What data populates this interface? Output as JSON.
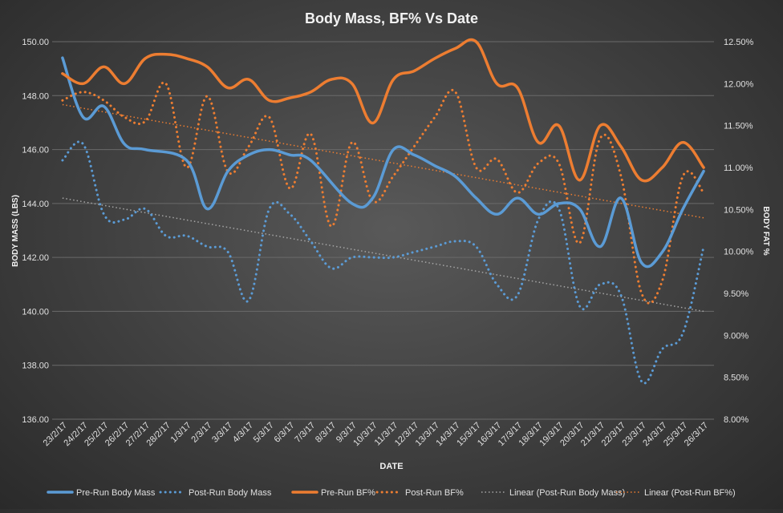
{
  "chart_data": {
    "type": "line",
    "title": "Body Mass,  BF% Vs Date",
    "xlabel": "DATE",
    "ylabel_left": "BODY MASS  (LBS)",
    "ylabel_right": "BODY FAT %",
    "ylim_left": [
      136,
      150
    ],
    "ylim_right": [
      8,
      12.5
    ],
    "yticks_left": [
      "136.00",
      "138.00",
      "140.00",
      "142.00",
      "144.00",
      "146.00",
      "148.00",
      "150.00"
    ],
    "yticks_right": [
      "8.00%",
      "8.50%",
      "9.00%",
      "9.50%",
      "10.00%",
      "10.50%",
      "11.00%",
      "11.50%",
      "12.00%",
      "12.50%"
    ],
    "categories": [
      "23/2/17",
      "24/2/17",
      "25/2/17",
      "26/2/17",
      "27/2/17",
      "28/2/17",
      "1/3/17",
      "2/3/17",
      "3/3/17",
      "4/3/17",
      "5/3/17",
      "6/3/17",
      "7/3/17",
      "8/3/17",
      "9/3/17",
      "10/3/17",
      "11/3/17",
      "12/3/17",
      "13/3/17",
      "14/3/17",
      "15/3/17",
      "16/3/17",
      "17/3/17",
      "18/3/17",
      "19/3/17",
      "20/3/17",
      "21/3/17",
      "22/3/17",
      "23/3/17",
      "24/3/17",
      "25/3/17",
      "26/3/17"
    ],
    "grid": true,
    "legend_position": "bottom",
    "series": [
      {
        "name": "Pre-Run Body Mass",
        "axis": "left",
        "style": "solid",
        "color": "#5b9bd5",
        "points": [
          [
            0,
            149.4
          ],
          [
            1,
            147.2
          ],
          [
            2,
            147.6
          ],
          [
            3,
            146.2
          ],
          [
            4,
            146.0
          ],
          [
            6,
            145.6
          ],
          [
            7,
            143.8
          ],
          [
            8,
            145.2
          ],
          [
            9,
            145.8
          ],
          [
            10,
            146.0
          ],
          [
            11,
            145.8
          ],
          [
            12,
            145.6
          ],
          [
            14,
            144.0
          ],
          [
            15,
            144.2
          ],
          [
            16,
            146.0
          ],
          [
            17,
            145.8
          ],
          [
            18,
            145.4
          ],
          [
            19,
            145.0
          ],
          [
            20,
            144.2
          ],
          [
            21,
            143.6
          ],
          [
            22,
            144.2
          ],
          [
            23,
            143.6
          ],
          [
            24,
            144.0
          ],
          [
            25,
            143.8
          ],
          [
            26,
            142.4
          ],
          [
            27,
            144.2
          ],
          [
            28,
            141.8
          ],
          [
            29,
            142.2
          ],
          [
            30,
            143.8
          ],
          [
            31,
            145.2
          ]
        ]
      },
      {
        "name": "Post-Run Body Mass",
        "axis": "left",
        "style": "dotted",
        "color": "#5b9bd5",
        "points": [
          [
            0,
            145.6
          ],
          [
            1,
            146.2
          ],
          [
            2,
            143.6
          ],
          [
            3,
            143.4
          ],
          [
            4,
            143.8
          ],
          [
            5,
            142.8
          ],
          [
            6,
            142.8
          ],
          [
            7,
            142.4
          ],
          [
            8,
            142.2
          ],
          [
            9,
            140.4
          ],
          [
            10,
            143.8
          ],
          [
            11,
            143.6
          ],
          [
            12,
            142.6
          ],
          [
            13,
            141.6
          ],
          [
            14,
            142.0
          ],
          [
            15,
            142.0
          ],
          [
            16,
            142.0
          ],
          [
            17,
            142.2
          ],
          [
            18,
            142.4
          ],
          [
            19,
            142.6
          ],
          [
            20,
            142.4
          ],
          [
            21,
            141.0
          ],
          [
            22,
            140.6
          ],
          [
            23,
            143.4
          ],
          [
            24,
            143.8
          ],
          [
            25,
            140.2
          ],
          [
            26,
            141.0
          ],
          [
            27,
            140.6
          ],
          [
            28,
            137.4
          ],
          [
            29,
            138.6
          ],
          [
            30,
            139.2
          ],
          [
            31,
            142.4
          ]
        ]
      },
      {
        "name": "Pre-Run BF%",
        "axis": "right",
        "style": "solid",
        "color": "#ed7d31",
        "points": [
          [
            0,
            12.12
          ],
          [
            1,
            12.0
          ],
          [
            2,
            12.2
          ],
          [
            3,
            12.0
          ],
          [
            4,
            12.3
          ],
          [
            5,
            12.35
          ],
          [
            6,
            12.3
          ],
          [
            7,
            12.2
          ],
          [
            8,
            11.95
          ],
          [
            9,
            12.05
          ],
          [
            10,
            11.8
          ],
          [
            11,
            11.83
          ],
          [
            12,
            11.9
          ],
          [
            13,
            12.05
          ],
          [
            14,
            12.0
          ],
          [
            15,
            11.53
          ],
          [
            16,
            12.05
          ],
          [
            17,
            12.15
          ],
          [
            18,
            12.3
          ],
          [
            19,
            12.42
          ],
          [
            20,
            12.5
          ],
          [
            21,
            12.0
          ],
          [
            22,
            11.95
          ],
          [
            23,
            11.3
          ],
          [
            24,
            11.5
          ],
          [
            25,
            10.85
          ],
          [
            26,
            11.5
          ],
          [
            27,
            11.25
          ],
          [
            28,
            10.85
          ],
          [
            29,
            11.0
          ],
          [
            30,
            11.3
          ],
          [
            31,
            11.0
          ]
        ]
      },
      {
        "name": "Post-Run BF%",
        "axis": "right",
        "style": "dotted",
        "color": "#ed7d31",
        "points": [
          [
            0,
            11.8
          ],
          [
            1,
            11.9
          ],
          [
            2,
            11.8
          ],
          [
            3,
            11.6
          ],
          [
            4,
            11.55
          ],
          [
            5,
            12.0
          ],
          [
            6,
            11.0
          ],
          [
            7,
            11.85
          ],
          [
            8,
            10.95
          ],
          [
            9,
            11.25
          ],
          [
            10,
            11.6
          ],
          [
            11,
            10.75
          ],
          [
            12,
            11.4
          ],
          [
            13,
            10.3
          ],
          [
            14,
            11.3
          ],
          [
            15,
            10.6
          ],
          [
            16,
            10.9
          ],
          [
            17,
            11.25
          ],
          [
            18,
            11.6
          ],
          [
            19,
            11.9
          ],
          [
            20,
            11.0
          ],
          [
            21,
            11.1
          ],
          [
            22,
            10.7
          ],
          [
            23,
            11.05
          ],
          [
            24,
            11.05
          ],
          [
            25,
            10.1
          ],
          [
            26,
            11.35
          ],
          [
            27,
            10.9
          ],
          [
            28,
            9.5
          ],
          [
            29,
            9.65
          ],
          [
            30,
            10.9
          ],
          [
            31,
            10.7
          ]
        ]
      },
      {
        "name": "Linear (Post-Run Body Mass)",
        "axis": "left",
        "style": "trend",
        "color": "#a6a6a6",
        "points": [
          [
            0,
            144.2
          ],
          [
            31,
            140.0
          ]
        ]
      },
      {
        "name": "Linear (Post-Run BF%)",
        "axis": "right",
        "style": "trend",
        "color": "#ed7d31",
        "points": [
          [
            0,
            11.75
          ],
          [
            31,
            10.4
          ]
        ]
      }
    ]
  }
}
